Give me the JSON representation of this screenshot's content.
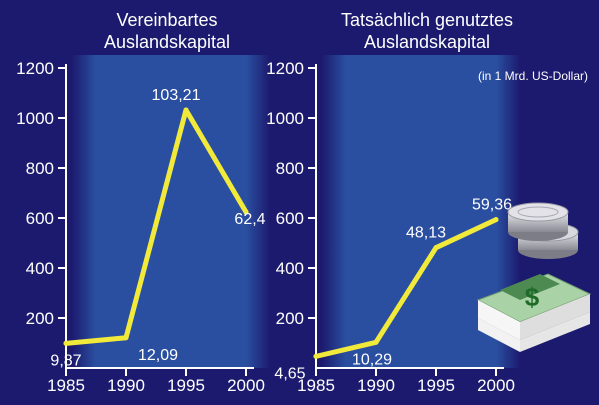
{
  "colors": {
    "background": "#1c1a6e",
    "plot_area": "#2a4fa0",
    "line": "#f2ea3a",
    "text": "#ffffff"
  },
  "unit_note": "(in 1 Mrd. US-Dollar)",
  "icons": [
    "coin-stack-icon",
    "dollar-bills-icon"
  ],
  "chart_data": [
    {
      "type": "line",
      "title": "Vereinbartes Auslandskapital",
      "title_lines": [
        "Vereinbartes",
        "Auslandskapital"
      ],
      "x": [
        1985,
        1990,
        1995,
        2000
      ],
      "values": [
        98.7,
        120.9,
        1032.1,
        624
      ],
      "data_labels": [
        "9,87",
        "12,09",
        "103,21",
        "62,4"
      ],
      "yticks": [
        200,
        400,
        600,
        800,
        1000,
        1200
      ],
      "ylim": [
        0,
        1300
      ],
      "grid": false
    },
    {
      "type": "line",
      "title": "Tatsächlich genutztes Auslandskapital",
      "title_lines": [
        "Tatsächlich genutztes",
        "Auslandskapital"
      ],
      "x": [
        1985,
        1990,
        1995,
        2000
      ],
      "values": [
        46.5,
        102.9,
        481.3,
        593.6
      ],
      "data_labels": [
        "4,65",
        "10,29",
        "48,13",
        "59,36"
      ],
      "yticks": [
        200,
        400,
        600,
        800,
        1000,
        1200
      ],
      "ylim": [
        0,
        1300
      ],
      "grid": false
    }
  ]
}
